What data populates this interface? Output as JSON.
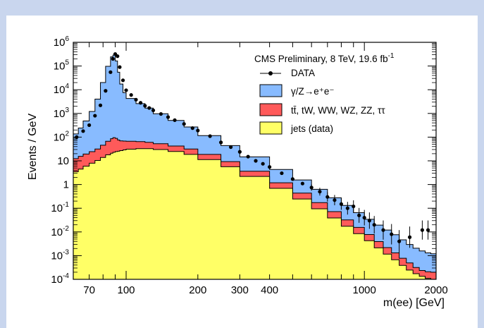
{
  "chart_data": {
    "type": "area",
    "title": "",
    "xlabel": "m(ee) [GeV]",
    "ylabel": "Events / GeV",
    "xscale": "log",
    "yscale": "log",
    "xlim": [
      60,
      2000
    ],
    "ylim": [
      0.0001,
      1000000
    ],
    "x_ticks": [
      {
        "value": 70,
        "label": "70"
      },
      {
        "value": 100,
        "label": "100"
      },
      {
        "value": 200,
        "label": "200"
      },
      {
        "value": 300,
        "label": "300"
      },
      {
        "value": 400,
        "label": "400"
      },
      {
        "value": 1000,
        "label": "1000"
      },
      {
        "value": 2000,
        "label": "2000"
      }
    ],
    "y_ticks": [
      {
        "value": 0.0001,
        "base": "10",
        "exp": "-4"
      },
      {
        "value": 0.001,
        "base": "10",
        "exp": "-3"
      },
      {
        "value": 0.01,
        "base": "10",
        "exp": "-2"
      },
      {
        "value": 0.1,
        "base": "10",
        "exp": "-1"
      },
      {
        "value": 1,
        "base": "1",
        "exp": ""
      },
      {
        "value": 10,
        "base": "10",
        "exp": ""
      },
      {
        "value": 100,
        "base": "10",
        "exp": "2"
      },
      {
        "value": 1000,
        "base": "10",
        "exp": "3"
      },
      {
        "value": 10000,
        "base": "10",
        "exp": "4"
      },
      {
        "value": 100000,
        "base": "10",
        "exp": "5"
      },
      {
        "value": 1000000,
        "base": "10",
        "exp": "6"
      }
    ],
    "stacked": true,
    "legend_position": "top-right",
    "legend_title": "CMS Preliminary, 8 TeV, 19.6 fb",
    "legend_title_sup": "-1",
    "x_nodes": [
      60,
      63,
      66,
      70,
      74,
      78,
      82,
      86,
      88,
      90,
      92,
      94,
      97,
      100,
      110,
      120,
      130,
      150,
      175,
      200,
      250,
      300,
      400,
      500,
      600,
      700,
      800,
      900,
      1000,
      1100,
      1200,
      1300,
      1400,
      1500,
      1600,
      1700,
      1800,
      1900,
      2000
    ],
    "series": [
      {
        "name": "jets (data)",
        "color": "#ffff66",
        "values": [
          3,
          4,
          5,
          7,
          9,
          12,
          16,
          20,
          22,
          24,
          25,
          26,
          28,
          30,
          32,
          33,
          32,
          28,
          22,
          16,
          8,
          4,
          1.2,
          0.4,
          0.15,
          0.06,
          0.025,
          0.012,
          0.006,
          0.003,
          0.0015,
          0.0009,
          0.0005,
          0.0003,
          0.0002,
          0.00015,
          0.00012,
          0.0001,
          0.0001
        ]
      },
      {
        "name": "tt̄, tW, WW, WZ, ZZ, ττ",
        "color": "#ff5a5a",
        "values": [
          8,
          10,
          12,
          15,
          18,
          25,
          40,
          60,
          70,
          75,
          55,
          45,
          40,
          38,
          34,
          30,
          26,
          20,
          15,
          11,
          5,
          2.6,
          0.8,
          0.3,
          0.12,
          0.05,
          0.022,
          0.01,
          0.005,
          0.0025,
          0.0013,
          0.0008,
          0.0005,
          0.0003,
          0.0002,
          0.0001,
          0.0001,
          0.0001,
          0.0001
        ]
      },
      {
        "name": "γ/Z→e⁺e⁻",
        "color": "#88bbff",
        "values": [
          90,
          170,
          300,
          700,
          2000,
          8000,
          50000,
          190000,
          310000,
          270000,
          100000,
          30000,
          10000,
          5500,
          3200,
          2000,
          1300,
          650,
          330,
          170,
          55,
          22,
          5.5,
          1.8,
          0.7,
          0.3,
          0.14,
          0.07,
          0.035,
          0.02,
          0.012,
          0.008,
          0.005,
          0.003,
          0.002,
          0.0015,
          0.0012,
          0.001,
          0.001
        ]
      }
    ],
    "data_points": {
      "name": "DATA",
      "x": [
        62,
        66,
        70,
        74,
        78,
        82,
        86,
        88,
        90,
        92,
        94,
        97,
        100,
        105,
        110,
        115,
        120,
        125,
        130,
        140,
        150,
        160,
        175,
        190,
        200,
        225,
        250,
        275,
        300,
        325,
        350,
        375,
        400,
        450,
        500,
        550,
        600,
        650,
        700,
        750,
        800,
        850,
        900,
        950,
        1000,
        1050,
        1100,
        1200,
        1300,
        1400,
        1550,
        1750,
        1850
      ],
      "y": [
        100,
        180,
        320,
        800,
        2200,
        9000,
        55000,
        200000,
        320000,
        260000,
        90000,
        25000,
        9500,
        6000,
        3800,
        2800,
        2100,
        1700,
        1350,
        950,
        700,
        520,
        360,
        240,
        190,
        110,
        60,
        38,
        24,
        15,
        10,
        7.5,
        5.5,
        3,
        1.7,
        1.1,
        0.75,
        0.5,
        0.3,
        0.22,
        0.15,
        0.1,
        0.12,
        0.05,
        0.04,
        0.03,
        0.02,
        0.012,
        0.008,
        0.004,
        0.006,
        0.012,
        0.012
      ]
    }
  }
}
